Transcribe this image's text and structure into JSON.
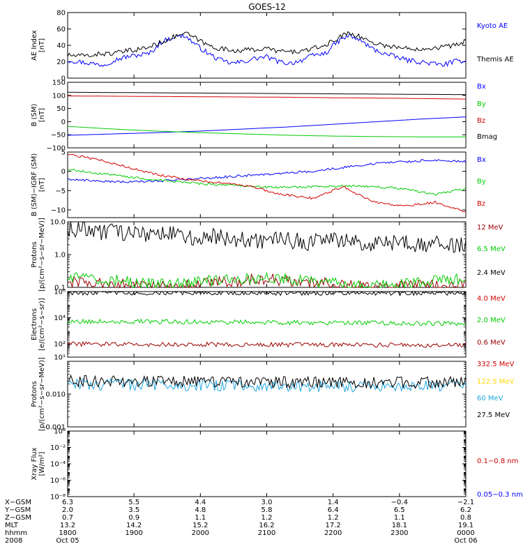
{
  "title": "GOES-12",
  "colors": {
    "black": "#000000",
    "blue": "#0000ff",
    "red": "#d40000",
    "green": "#00cc00",
    "darkred": "#990000",
    "yellow": "#ffd700",
    "cyan": "#22a8e0"
  },
  "chart_data": [
    {
      "type": "line",
      "ylabel": "AE Index\n[nT]",
      "ylim": [
        0,
        80
      ],
      "scale": "linear",
      "yticks": [
        "80",
        "60",
        "40",
        "20",
        "0"
      ],
      "ytick_values": [
        80,
        60,
        40,
        20,
        0
      ],
      "series": [
        {
          "name": "Kyoto AE",
          "color": "blue",
          "values": [
            22,
            20,
            18,
            16,
            22,
            26,
            28,
            30,
            44,
            50,
            52,
            40,
            30,
            22,
            18,
            20,
            24,
            26,
            20,
            18,
            22,
            28,
            30,
            44,
            52,
            46,
            36,
            30,
            26,
            22,
            20,
            18,
            16,
            20,
            22
          ]
        },
        {
          "name": "Themis AE",
          "color": "black",
          "values": [
            28,
            27,
            28,
            30,
            30,
            33,
            35,
            38,
            44,
            50,
            55,
            48,
            40,
            36,
            34,
            34,
            35,
            36,
            33,
            32,
            33,
            36,
            40,
            48,
            56,
            50,
            44,
            40,
            38,
            36,
            36,
            37,
            38,
            40,
            45
          ]
        }
      ]
    },
    {
      "type": "line",
      "ylabel": "B (SM)\n[nT]",
      "ylim": [
        -100,
        150
      ],
      "scale": "linear",
      "yticks": [
        "150",
        "100",
        "50",
        "0",
        "−50",
        "−100"
      ],
      "ytick_values": [
        150,
        100,
        50,
        0,
        -50,
        -100
      ],
      "series": [
        {
          "name": "Bx",
          "color": "blue",
          "values": [
            -52,
            -47,
            -42,
            -36,
            -28,
            -20,
            -10,
            0,
            10,
            18
          ]
        },
        {
          "name": "By",
          "color": "green",
          "values": [
            -18,
            -28,
            -36,
            -42,
            -47,
            -52,
            -55,
            -57,
            -58,
            -58
          ]
        },
        {
          "name": "Bz",
          "color": "red",
          "values": [
            98,
            97,
            96,
            95,
            94,
            93,
            91,
            90,
            88,
            86
          ]
        },
        {
          "name": "Bmag",
          "color": "black",
          "values": [
            112,
            111,
            110,
            109,
            108,
            107,
            106,
            105,
            104,
            103
          ]
        }
      ]
    },
    {
      "type": "line",
      "ylabel": "B (SM)−IGRF (SM)\n[nT]",
      "ylim": [
        -12,
        5
      ],
      "scale": "linear",
      "yticks": [
        "5",
        "0",
        "−5",
        "−10"
      ],
      "ytick_values": [
        5,
        0,
        -5,
        -10
      ],
      "series": [
        {
          "name": "Bx",
          "color": "blue",
          "values": [
            -2,
            -2.5,
            -2.8,
            -2.5,
            -2,
            -1.5,
            -1,
            -0.5,
            0,
            1,
            2,
            2.5,
            3,
            2.5
          ]
        },
        {
          "name": "By",
          "color": "green",
          "values": [
            0.5,
            -0.5,
            -1.5,
            -2.2,
            -3,
            -3.5,
            -4,
            -4.2,
            -4,
            -3.8,
            -4,
            -4.5,
            -6,
            -4.5
          ]
        },
        {
          "name": "Bz",
          "color": "red",
          "values": [
            4.5,
            3,
            1,
            -1,
            -2.2,
            -3,
            -4,
            -6,
            -7,
            -4,
            -8,
            -9,
            -8,
            -10.5
          ]
        }
      ]
    },
    {
      "type": "line",
      "ylabel": "Protons\n[p/(cm²−s−sr−MeV)]",
      "ylim": [
        0.1,
        10
      ],
      "scale": "log",
      "yticks": [
        "10.0",
        "1.0",
        "0.1"
      ],
      "ytick_values": [
        10,
        1,
        0.1
      ],
      "series": [
        {
          "name": "12 MeV",
          "color": "darkred",
          "values": [
            0.15,
            0.1,
            0.18,
            0.1,
            0.12
          ]
        },
        {
          "name": "6.5 MeV",
          "color": "green",
          "values": [
            0.2,
            0.12,
            0.2,
            0.1,
            0.18
          ]
        },
        {
          "name": "2.4 MeV",
          "color": "black",
          "values": [
            6,
            5,
            4,
            3.5,
            3,
            2.5,
            2.5,
            2.2,
            2,
            2
          ]
        }
      ]
    },
    {
      "type": "line",
      "ylabel": "Electrons\n[e/(cm²−s−sr)]",
      "ylim": [
        10,
        1000000
      ],
      "scale": "log",
      "yticks": [
        "10⁶",
        "10⁴",
        "10²",
        "10¹"
      ],
      "ytick_values": [
        1000000,
        10000,
        100,
        10
      ],
      "series": [
        {
          "name": "4.0 MeV",
          "color": "red",
          "values": []
        },
        {
          "name": "2.0 MeV",
          "color": "green",
          "values": [
            5500,
            5000,
            4500,
            4000,
            3500
          ]
        },
        {
          "name": "0.6 MeV",
          "color": "darkred",
          "values": [
            100,
            95,
            90,
            85,
            80
          ]
        },
        {
          "name": "",
          "color": "black",
          "values": [
            800000,
            780000,
            760000,
            740000,
            720000
          ]
        }
      ]
    },
    {
      "type": "line",
      "ylabel": "Protons\n[p/(cm²−s−sr−MeV)]",
      "ylim": [
        0.001,
        0.1
      ],
      "scale": "log",
      "yticks": [
        "0.010",
        "0.001"
      ],
      "ytick_values": [
        0.01,
        0.001
      ],
      "series": [
        {
          "name": "332.5 MeV",
          "color": "red",
          "values": []
        },
        {
          "name": "122.5 MeV",
          "color": "yellow",
          "values": []
        },
        {
          "name": "60 MeV",
          "color": "cyan",
          "values": [
            0.02,
            0.019,
            0.018,
            0.017,
            0.018
          ]
        },
        {
          "name": "27.5 MeV",
          "color": "black",
          "values": [
            0.025,
            0.024,
            0.023,
            0.022,
            0.023
          ]
        }
      ]
    },
    {
      "type": "line",
      "ylabel": "Xray  Flux\n[W/m²]",
      "ylim": [
        1e-08,
        1
      ],
      "scale": "log",
      "yticks": [
        "10⁰",
        "10⁻²",
        "10⁻⁴",
        "10⁻⁶",
        "10⁻⁸"
      ],
      "ytick_values": [
        1,
        0.01,
        0.0001,
        1e-06,
        1e-08
      ],
      "series": [
        {
          "name": "0.1−0.8 nm",
          "color": "red",
          "values": []
        },
        {
          "name": "0.05−0.3 nm",
          "color": "blue",
          "values": []
        }
      ]
    }
  ],
  "xaxis": {
    "row_labels": [
      "X−GSM",
      "Y−GSM",
      "Z−GSM",
      "MLT",
      "hhmm",
      "2008"
    ],
    "columns": [
      [
        "6.3",
        "2.0",
        "0.7",
        "13.2",
        "1800",
        "Oct 05"
      ],
      [
        "5.5",
        "3.5",
        "0.9",
        "14.2",
        "1900",
        ""
      ],
      [
        "4.4",
        "4.8",
        "1.1",
        "15.2",
        "2000",
        ""
      ],
      [
        "3.0",
        "5.8",
        "1.2",
        "16.2",
        "2100",
        ""
      ],
      [
        "1.4",
        "6.4",
        "1.2",
        "17.2",
        "2200",
        ""
      ],
      [
        "−0.4",
        "6.5",
        "1.1",
        "18.1",
        "2300",
        ""
      ],
      [
        "−2.1",
        "6.2",
        "0.8",
        "19.1",
        "0000",
        "Oct 06"
      ]
    ]
  }
}
